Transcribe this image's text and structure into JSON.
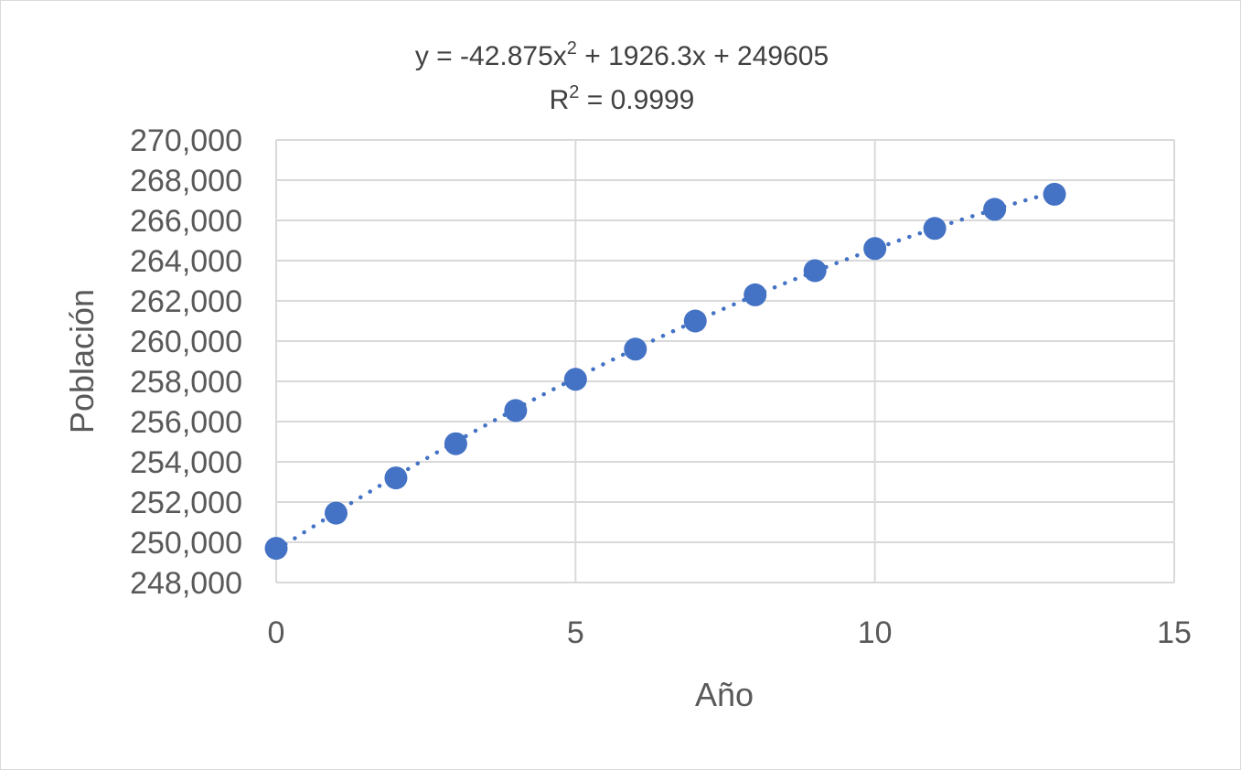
{
  "chart_data": {
    "type": "scatter",
    "title": "",
    "xlabel": "Año",
    "ylabel": "Población",
    "xlim": [
      0,
      15
    ],
    "ylim": [
      248000,
      270000
    ],
    "x_ticks": [
      0,
      5,
      10,
      15
    ],
    "y_ticks": [
      248000,
      250000,
      252000,
      254000,
      256000,
      258000,
      260000,
      262000,
      264000,
      266000,
      268000,
      270000
    ],
    "x_tick_labels": [
      "0",
      "5",
      "10",
      "15"
    ],
    "y_tick_labels": [
      "248,000",
      "250,000",
      "252,000",
      "254,000",
      "256,000",
      "258,000",
      "260,000",
      "262,000",
      "264,000",
      "266,000",
      "268,000",
      "270,000"
    ],
    "grid": true,
    "legend": "none",
    "series": [
      {
        "x": [
          0,
          1,
          2,
          3,
          4,
          5,
          6,
          7,
          8,
          9,
          10,
          11,
          12,
          13
        ],
        "y": [
          249700,
          251450,
          253200,
          254900,
          256550,
          258100,
          259600,
          261000,
          262300,
          263500,
          264600,
          265600,
          266550,
          267300
        ],
        "color": "#4472c4"
      }
    ],
    "trendline": {
      "type": "polynomial",
      "order": 2,
      "coefficients": [
        -42.875,
        1926.3,
        249605
      ],
      "style": "dotted",
      "color": "#4472c4",
      "x_range": [
        0,
        13
      ],
      "equation_prefix": "y = -42.875x",
      "equation_exp": "2",
      "equation_suffix": " + 1926.3x + 249605",
      "r2_prefix": "R",
      "r2_exp": "2",
      "r2_suffix": " = 0.9999"
    }
  },
  "colors": {
    "marker": "#4472c4",
    "grid": "#d9d9d9",
    "text": "#595959",
    "border": "#d9d9d9"
  }
}
